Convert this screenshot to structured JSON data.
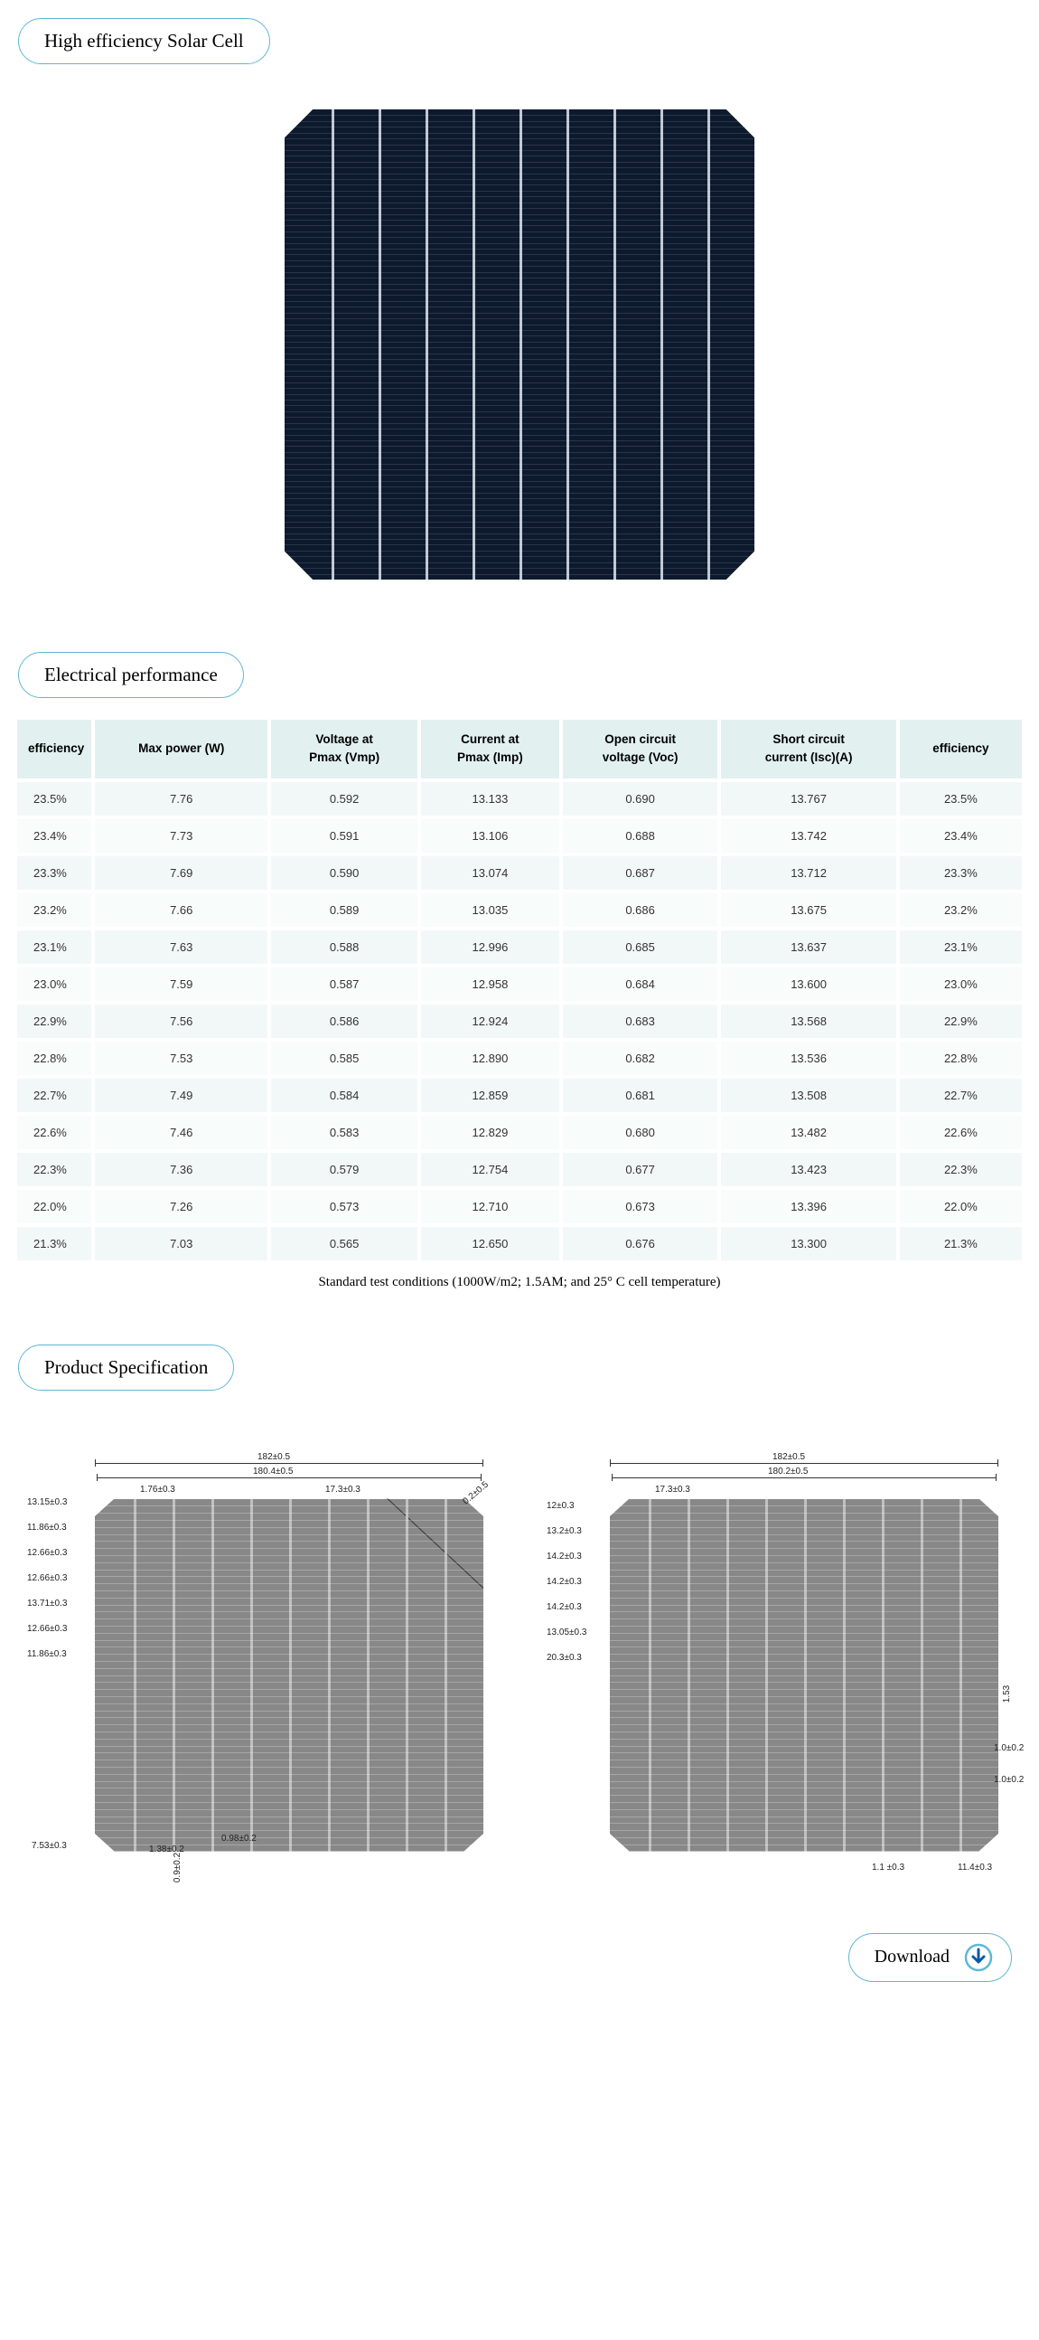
{
  "sections": {
    "hero_title": "High efficiency Solar Cell",
    "perf_title": "Electrical performance",
    "spec_title": "Product Specification"
  },
  "solar_cell": {
    "background_color": "#0d1a2e",
    "line_color": "#c0c8d4",
    "vertical_lines": 9,
    "horizontal_fine_lines": 80
  },
  "perf_table": {
    "header_bg": "#e2f1f0",
    "row_bg": "#f2f8f7",
    "row_bg_alt": "#f8fcfb",
    "columns": [
      "efficiency",
      "Max power (W)",
      "Voltage at Pmax (Vmp)",
      "Current at Pmax (Imp)",
      "Open circuit voltage (Voc)",
      "Short circuit current (Isc)(A)",
      "efficiency"
    ],
    "rows": [
      [
        "23.5%",
        "7.76",
        "0.592",
        "13.133",
        "0.690",
        "13.767",
        "23.5%"
      ],
      [
        "23.4%",
        "7.73",
        "0.591",
        "13.106",
        "0.688",
        "13.742",
        "23.4%"
      ],
      [
        "23.3%",
        "7.69",
        "0.590",
        "13.074",
        "0.687",
        "13.712",
        "23.3%"
      ],
      [
        "23.2%",
        "7.66",
        "0.589",
        "13.035",
        "0.686",
        "13.675",
        "23.2%"
      ],
      [
        "23.1%",
        "7.63",
        "0.588",
        "12.996",
        "0.685",
        "13.637",
        "23.1%"
      ],
      [
        "23.0%",
        "7.59",
        "0.587",
        "12.958",
        "0.684",
        "13.600",
        "23.0%"
      ],
      [
        "22.9%",
        "7.56",
        "0.586",
        "12.924",
        "0.683",
        "13.568",
        "22.9%"
      ],
      [
        "22.8%",
        "7.53",
        "0.585",
        "12.890",
        "0.682",
        "13.536",
        "22.8%"
      ],
      [
        "22.7%",
        "7.49",
        "0.584",
        "12.859",
        "0.681",
        "13.508",
        "22.7%"
      ],
      [
        "22.6%",
        "7.46",
        "0.583",
        "12.829",
        "0.680",
        "13.482",
        "22.6%"
      ],
      [
        "22.3%",
        "7.36",
        "0.579",
        "12.754",
        "0.677",
        "13.423",
        "22.3%"
      ],
      [
        "22.0%",
        "7.26",
        "0.573",
        "12.710",
        "0.673",
        "13.396",
        "22.0%"
      ],
      [
        "21.3%",
        "7.03",
        "0.565",
        "12.650",
        "0.676",
        "13.300",
        "21.3%"
      ]
    ],
    "footnote": "Standard test conditions (1000W/m2; 1.5AM; and 25° C cell temperature)"
  },
  "spec_drawings": {
    "body_color": "#888888",
    "line_color": "#c0c0c0",
    "busbars": 9,
    "left": {
      "dims_top": [
        "182±0.5",
        "180.4±0.5",
        "1.76±0.3",
        "17.3±0.3"
      ],
      "dims_left": [
        "13.15±0.3",
        "11.86±0.3",
        "12.66±0.3",
        "12.66±0.3",
        "13.71±0.3",
        "12.66±0.3",
        "11.86±0.3"
      ],
      "dims_bottom": [
        "7.53±0.3",
        "1.38±0.2",
        "0.98±0.2",
        "0.9±0.2"
      ],
      "dims_corner": "0.2±0.5"
    },
    "right": {
      "dims_top": [
        "182±0.5",
        "180.2±0.5",
        "17.3±0.3"
      ],
      "dims_left": [
        "12±0.3",
        "13.2±0.3",
        "14.2±0.3",
        "14.2±0.3",
        "14.2±0.3",
        "13.05±0.3",
        "20.3±0.3"
      ],
      "dims_right": [
        "1.53",
        "1.0±0.2",
        "1.0±0.2"
      ],
      "dims_bottom": [
        "1.1 ±0.3",
        "11.4±0.3"
      ]
    }
  },
  "download": {
    "label": "Download",
    "icon_color_1": "#0a5aa8",
    "icon_color_2": "#5eb8d4"
  },
  "colors": {
    "pill_border": "#5eb8d4",
    "background": "#ffffff",
    "text": "#000000"
  }
}
